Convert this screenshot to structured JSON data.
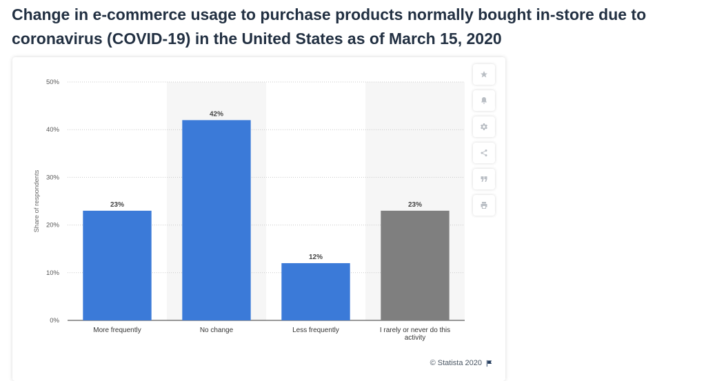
{
  "page": {
    "title": "Change in e-commerce usage to purchase products normally bought in-store due to coronavirus (COVID-19) in the United States as of March 15, 2020"
  },
  "toolbar": {
    "buttons": [
      {
        "icon": "star-icon"
      },
      {
        "icon": "bell-icon"
      },
      {
        "icon": "gear-icon"
      },
      {
        "icon": "share-icon"
      },
      {
        "icon": "quote-icon"
      },
      {
        "icon": "print-icon"
      }
    ]
  },
  "footer": {
    "copyright": "© Statista 2020",
    "flag_icon": "flag-icon"
  },
  "colors": {
    "bar_primary": "#3b7ad8",
    "bar_secondary": "#7f7f7f",
    "band": "#f6f6f6",
    "grid": "#c8c8c8"
  },
  "chart_data": {
    "type": "bar",
    "title": "",
    "xlabel": "",
    "ylabel": "Share of respondents",
    "categories": [
      "More frequently",
      "No change",
      "Less frequently",
      "I rarely or never do this activity"
    ],
    "category_lines": [
      [
        "More frequently"
      ],
      [
        "No change"
      ],
      [
        "Less frequently"
      ],
      [
        "I rarely or never do this",
        "activity"
      ]
    ],
    "values": [
      23,
      42,
      12,
      23
    ],
    "value_labels": [
      "23%",
      "42%",
      "12%",
      "23%"
    ],
    "bar_colors": [
      "#3b7ad8",
      "#3b7ad8",
      "#3b7ad8",
      "#7f7f7f"
    ],
    "yticks": [
      0,
      10,
      20,
      30,
      40,
      50
    ],
    "ytick_labels": [
      "0%",
      "10%",
      "20%",
      "30%",
      "40%",
      "50%"
    ],
    "ylim": [
      0,
      50
    ],
    "grid": true,
    "legend": "none"
  }
}
